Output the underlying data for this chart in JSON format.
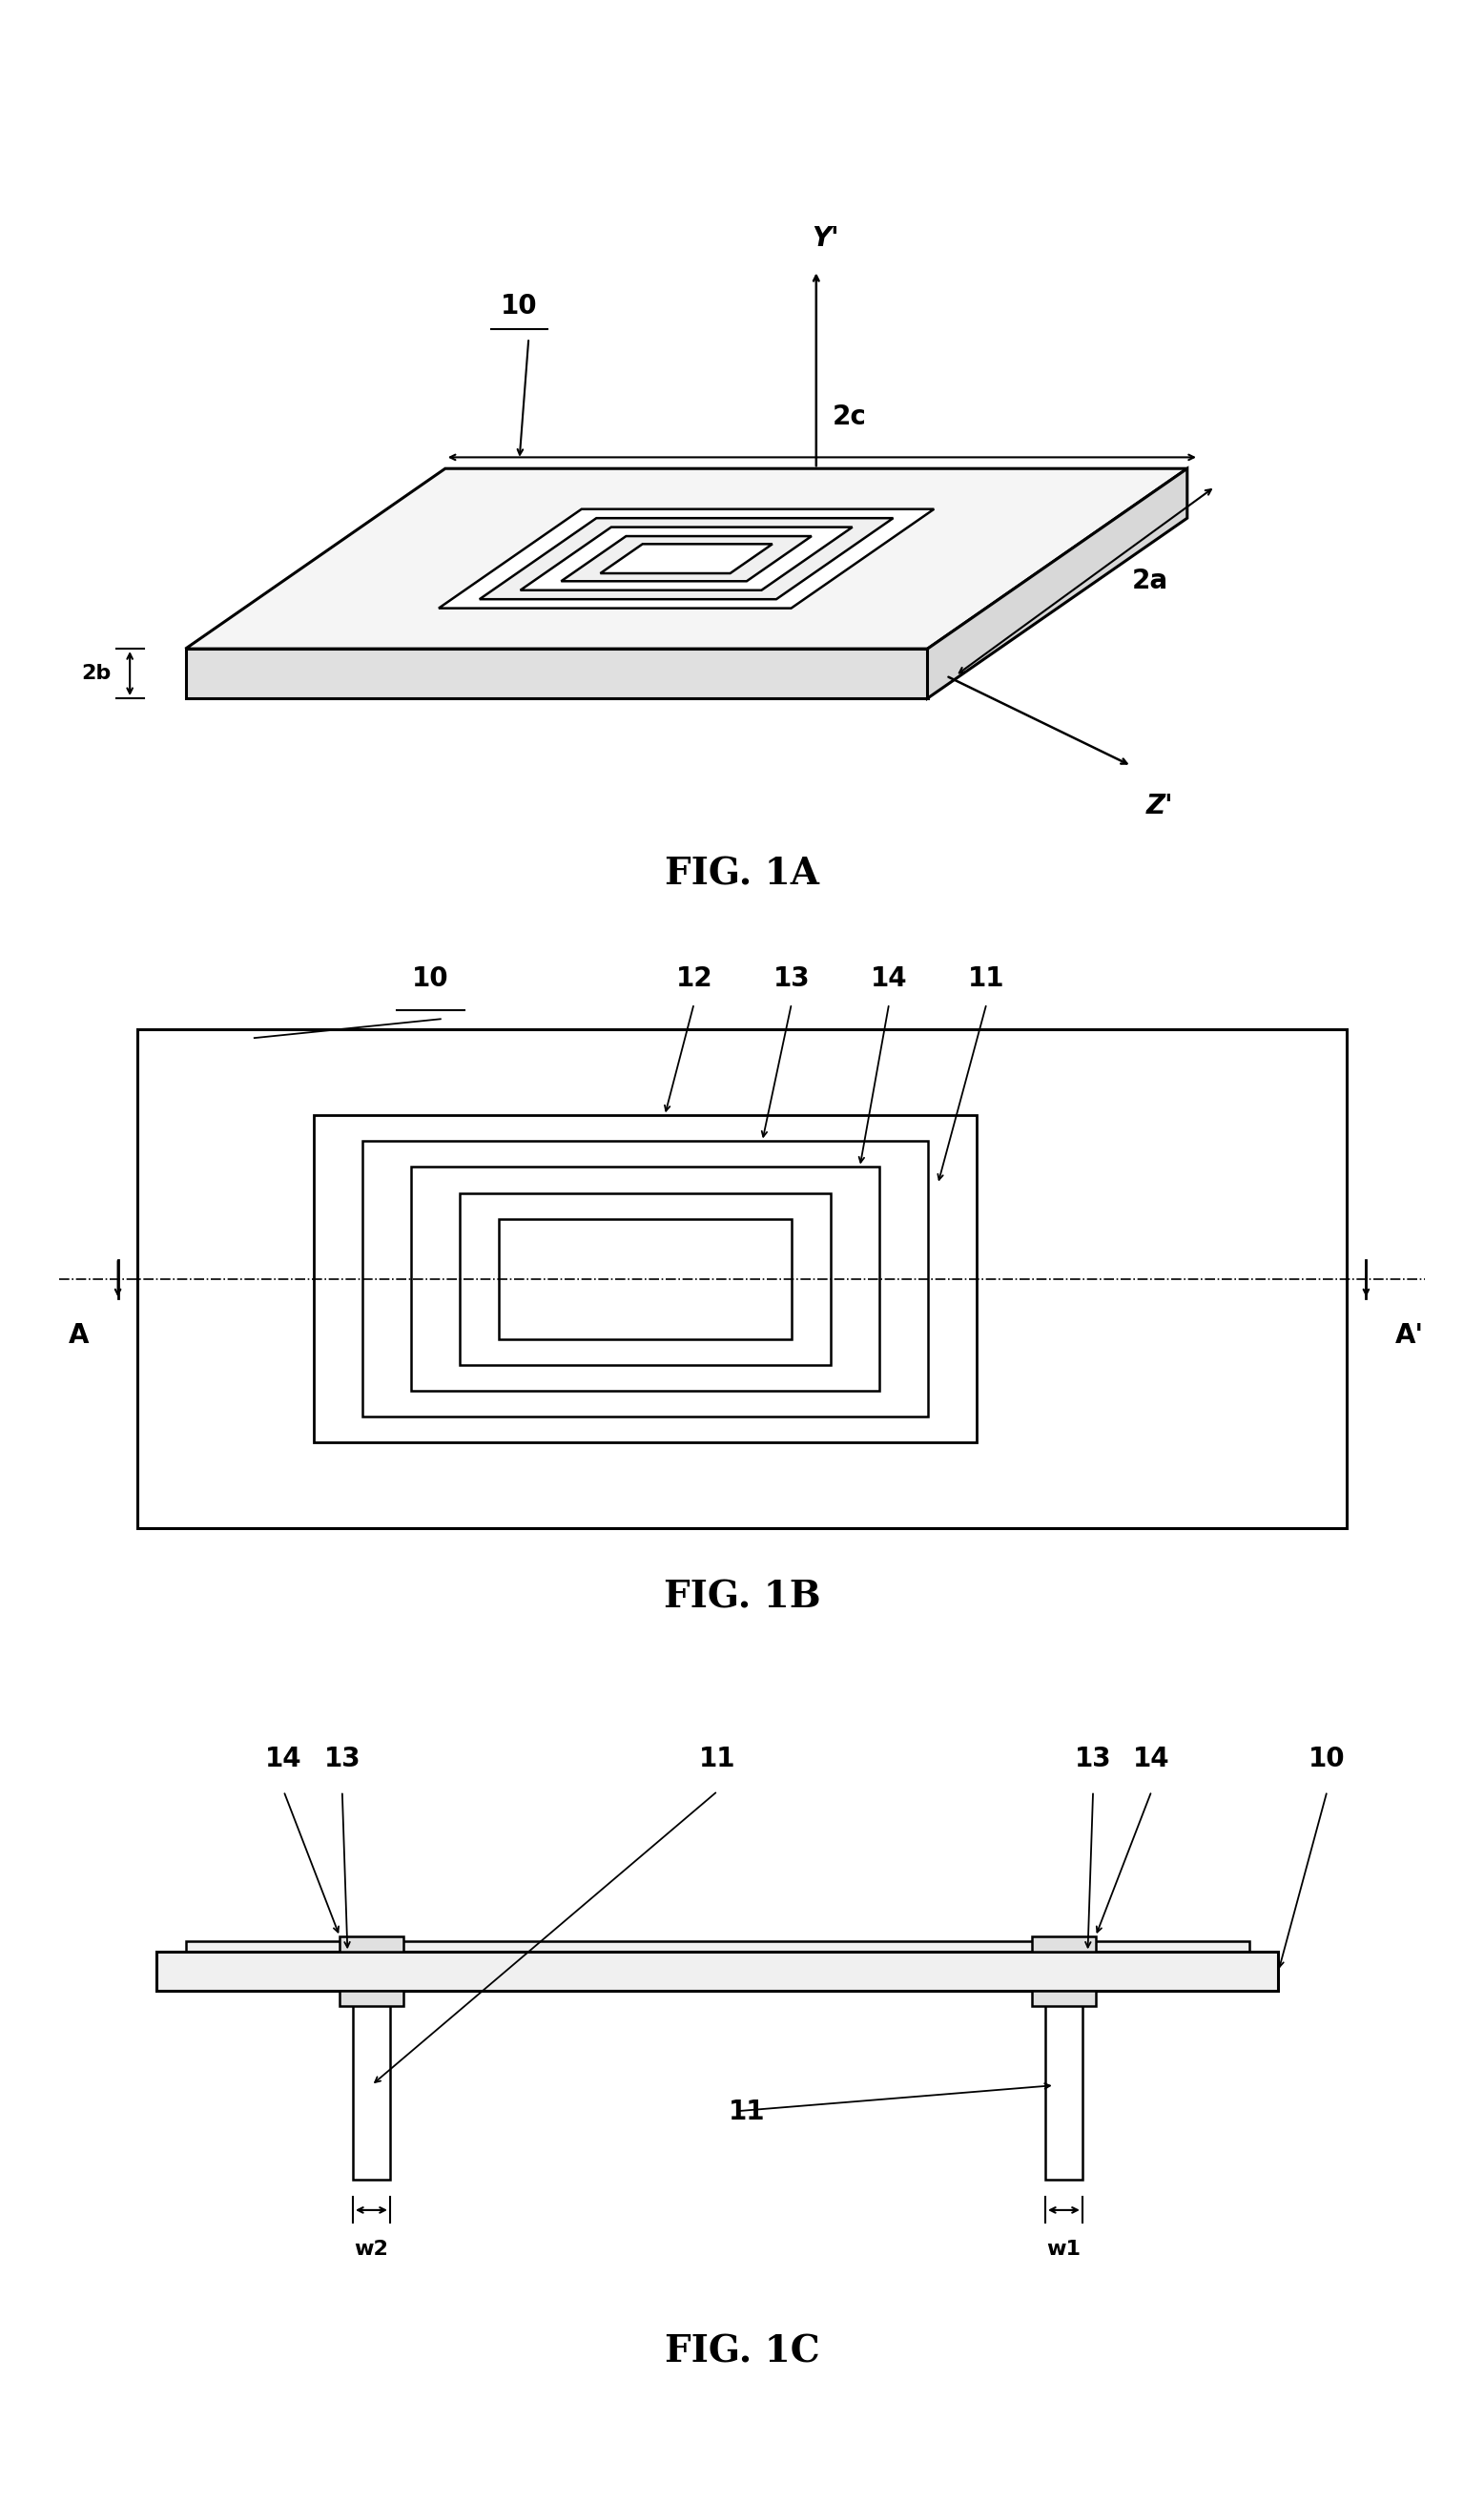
{
  "bg_color": "#ffffff",
  "line_color": "#000000",
  "lw_main": 1.8,
  "lw_thick": 2.2,
  "fig1a_title": "FIG. 1A",
  "fig1b_title": "FIG. 1B",
  "fig1c_title": "FIG. 1C",
  "title_fontsize": 28,
  "label_fontsize": 20,
  "annot_fontsize": 18
}
